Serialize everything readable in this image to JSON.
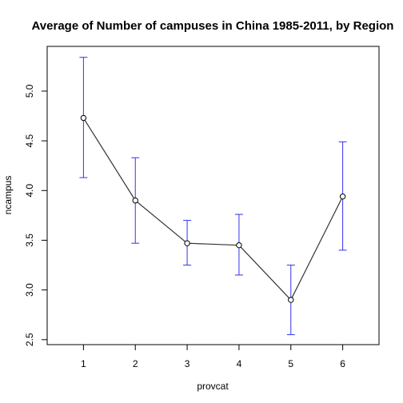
{
  "chart_data": {
    "type": "line",
    "title": "Average of Number of campuses in China 1985-2011, by Region",
    "xlabel": "provcat",
    "ylabel": "ncampus",
    "x": [
      1,
      2,
      3,
      4,
      5,
      6
    ],
    "x_tick_labels": [
      "1",
      "2",
      "3",
      "4",
      "5",
      "6"
    ],
    "y_ticks": [
      2.5,
      3.0,
      3.5,
      4.0,
      4.5,
      5.0
    ],
    "y_tick_labels": [
      "2.5",
      "3.0",
      "3.5",
      "4.0",
      "4.5",
      "5.0"
    ],
    "xlim": [
      0.3,
      6.7
    ],
    "ylim": [
      2.45,
      5.45
    ],
    "series": [
      {
        "values": [
          4.73,
          3.9,
          3.47,
          3.45,
          2.9,
          3.94
        ],
        "error_lower": [
          4.13,
          3.47,
          3.25,
          3.15,
          2.55,
          3.4
        ],
        "error_upper": [
          5.34,
          4.33,
          3.7,
          3.76,
          3.25,
          4.49
        ],
        "line_color": "#333333",
        "error_bar_color": "#3333ee"
      }
    ],
    "grid": false,
    "marker": "open-circle"
  }
}
